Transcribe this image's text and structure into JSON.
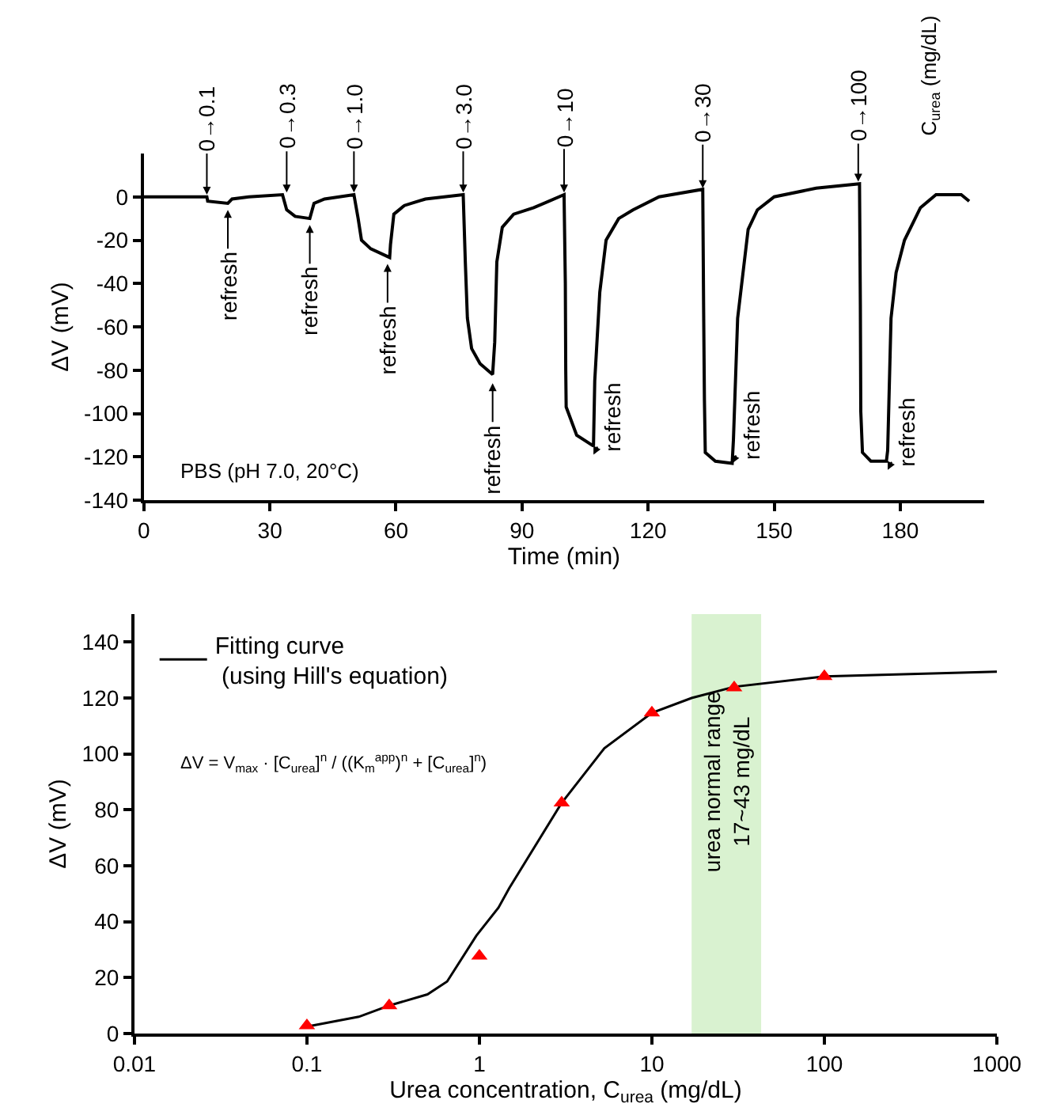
{
  "chart_data": [
    {
      "type": "line",
      "xlabel": "Time (min)",
      "ylabel": "ΔV (mV)",
      "xlim": [
        0,
        200
      ],
      "xticks": [
        0,
        30,
        60,
        90,
        120,
        150,
        180
      ],
      "ylim": [
        -140,
        20
      ],
      "yticks": [
        -140,
        -120,
        -100,
        -80,
        -60,
        -40,
        -20,
        0
      ],
      "grid": false,
      "legend": false,
      "marker": "none",
      "line_style": "solid",
      "series": [
        {
          "color": "#000000",
          "x": [
            0,
            15,
            15.2,
            20,
            21,
            25,
            33,
            34,
            36,
            39.5,
            40.5,
            43,
            50,
            51,
            51.8,
            54,
            58.5,
            58.7,
            59.5,
            62,
            67,
            76,
            76.5,
            77,
            78,
            80,
            83,
            83.5,
            84,
            85.3,
            88,
            92.8,
            100,
            100.3,
            100.4,
            100.5,
            103,
            107,
            107.3,
            108.5,
            110,
            113,
            116.4,
            122.6,
            133,
            133.2,
            133.4,
            133.6,
            136,
            140,
            140.3,
            141.3,
            143.8,
            146,
            150,
            160,
            170.3,
            170.5,
            170.6,
            171,
            173,
            176.7,
            177,
            177.8,
            179,
            181,
            184.8,
            188.5,
            194.5,
            196.4
          ],
          "values": [
            0,
            0,
            -2,
            -3,
            -1,
            0,
            1,
            -6,
            -9,
            -10,
            -3,
            -1,
            1,
            -10,
            -20,
            -24,
            -28,
            -22,
            -8,
            -4,
            -1,
            1,
            -30,
            -56,
            -70,
            -77,
            -82,
            -67,
            -30,
            -14,
            -8,
            -5,
            1,
            -40,
            -80,
            -97,
            -110,
            -115,
            -85,
            -44,
            -20,
            -10,
            -6,
            0,
            3.5,
            -50,
            -94,
            -118,
            -122,
            -123,
            -112,
            -56,
            -15,
            -6,
            0,
            4,
            6,
            -50,
            -99,
            -118,
            -122,
            -122,
            -117,
            -56,
            -35,
            -20,
            -5,
            1,
            1,
            -2
          ]
        }
      ],
      "annotations": [
        {
          "text": "0→0.1",
          "x": 15,
          "y": 1
        },
        {
          "text": "0→0.3",
          "x": 34,
          "y": 2
        },
        {
          "text": "0→1.0",
          "x": 50,
          "y": 2
        },
        {
          "text": "0→3.0",
          "x": 76,
          "y": 2
        },
        {
          "text": "0→10",
          "x": 100,
          "y": 2
        },
        {
          "text": "0→30",
          "x": 133,
          "y": 4
        },
        {
          "text": "0→100",
          "x": 170,
          "y": 7
        },
        {
          "text": "refresh",
          "x": 20,
          "y": -6
        },
        {
          "text": "refresh",
          "x": 39.5,
          "y": -13
        },
        {
          "text": "refresh",
          "x": 58,
          "y": -31
        },
        {
          "text": "refresh",
          "x": 83,
          "y": -86
        },
        {
          "text": "refresh",
          "x": 107,
          "y": -119
        },
        {
          "text": "refresh",
          "x": 140,
          "y": -123
        },
        {
          "text": "refresh",
          "x": 177,
          "y": -126
        },
        "PBS (pH 7.0, 20°C)",
        "C$_{urea}$ (mg/dL)"
      ]
    },
    {
      "type": "line",
      "xlabel": "Urea concentration, C$_{urea}$ (mg/dL)",
      "ylabel": "ΔV (mV)",
      "log": "x",
      "xlim": [
        0.01,
        1000
      ],
      "xticks": [
        0.01,
        0.1,
        1,
        10,
        100,
        1000
      ],
      "ylim": [
        0,
        150
      ],
      "yticks": [
        0,
        20,
        40,
        60,
        80,
        100,
        120,
        140
      ],
      "grid": false,
      "legend": "top left",
      "series": [
        {
          "name": "Fitting curve\n (using Hill's equation)",
          "type": "line",
          "color": "#000000",
          "marker": "none",
          "x": [
            0.1,
            0.2,
            0.3,
            0.5,
            0.65,
            0.96,
            1.29,
            1.49,
            3,
            5.3,
            10,
            17,
            30,
            100,
            1000
          ],
          "values": [
            2.5,
            6,
            10,
            14,
            18.6,
            35,
            45,
            52,
            82.5,
            102,
            114.7,
            120,
            124,
            127.7,
            129.4
          ]
        },
        {
          "type": "scatter",
          "color": "#ff0000",
          "marker": "triangle",
          "x": [
            0.1,
            0.3,
            1,
            3,
            10,
            30,
            100
          ],
          "values": [
            2.8,
            10,
            27.7,
            82.5,
            114.7,
            123.7,
            127.7
          ]
        }
      ],
      "bands": [
        {
          "axis": "x",
          "from": 17,
          "to": 43,
          "color": "#d9f2d0",
          "label": "urea normal range\n17~43 mg/dL"
        }
      ],
      "annotations": [
        "ΔV = V$_{max}$ · [C$_{urea}$]$^{n}$ / ((K$_{m}$$^{app}$)$^{n}$ + [C$_{urea}$]$^{n}$)"
      ]
    }
  ]
}
